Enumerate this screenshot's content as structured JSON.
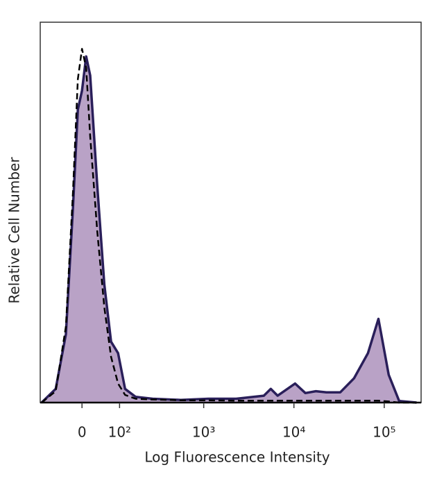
{
  "chart_data": {
    "type": "histogram-overlay",
    "xlabel": "Log Fluorescence Intensity",
    "ylabel": "Relative Cell Number",
    "xscale": "asinh",
    "xlim": [
      -115,
      256000
    ],
    "ylim": [
      0,
      100
    ],
    "xticks": [
      0,
      {
        "value": 100,
        "label": "10²"
      },
      {
        "value": 1000,
        "label": "10³"
      },
      {
        "value": 10000,
        "label": "10⁴"
      },
      {
        "value": 100000,
        "label": "10⁵"
      }
    ],
    "x": [
      -110,
      -65,
      -38,
      -21,
      -9.6,
      0,
      9.6,
      19,
      36,
      54,
      73,
      95,
      120,
      165,
      265,
      553,
      1125,
      2290,
      4640,
      5540,
      6600,
      10300,
      13400,
      17500,
      22900,
      32600,
      46400,
      66000,
      86200,
      112000,
      146500,
      228000
    ],
    "series": [
      {
        "color": "#2a1f5a",
        "fill": "#b9a2c6",
        "dash": false,
        "values": [
          0,
          3.6,
          18,
          51,
          77,
          82,
          91,
          86,
          57,
          31,
          16,
          13,
          3.6,
          1.5,
          1,
          0.7,
          1,
          1,
          1.8,
          3.6,
          1.8,
          5,
          2.5,
          3,
          2.7,
          2.7,
          6.4,
          13,
          22,
          7.3,
          0.4,
          0
        ]
      },
      {
        "color": "#000000",
        "fill": null,
        "dash": true,
        "values": [
          0,
          3,
          20,
          55,
          85,
          93,
          88,
          70,
          45,
          25,
          12,
          5,
          2,
          1,
          0.8,
          0.6,
          0.6,
          0.5,
          0.5,
          0.5,
          0.5,
          0.5,
          0.5,
          0.5,
          0.5,
          0.5,
          0.5,
          0.5,
          0.5,
          0.3,
          0,
          0
        ]
      }
    ]
  }
}
